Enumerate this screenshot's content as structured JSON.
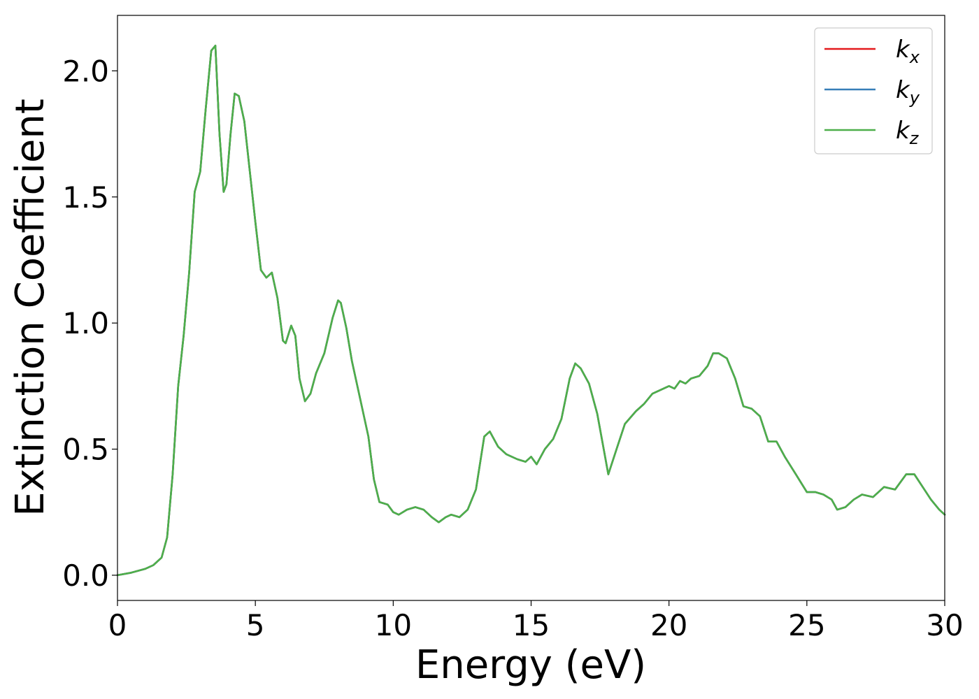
{
  "chart_data": {
    "type": "line",
    "xlabel": "Energy (eV)",
    "ylabel": "Extinction Coefficient",
    "xlim": [
      0,
      30
    ],
    "ylim": [
      -0.1,
      2.22
    ],
    "xticks": [
      0,
      5,
      10,
      15,
      20,
      25,
      30
    ],
    "xtick_labels": [
      "0",
      "5",
      "10",
      "15",
      "20",
      "25",
      "30"
    ],
    "yticks": [
      0.0,
      0.5,
      1.0,
      1.5,
      2.0
    ],
    "ytick_labels": [
      "0.0",
      "0.5",
      "1.0",
      "1.5",
      "2.0"
    ],
    "grid": false,
    "legend_position": "top-right",
    "x": [
      0,
      0.5,
      1.0,
      1.3,
      1.6,
      1.8,
      2.0,
      2.2,
      2.4,
      2.6,
      2.8,
      3.0,
      3.2,
      3.4,
      3.55,
      3.7,
      3.85,
      3.95,
      4.1,
      4.25,
      4.4,
      4.6,
      4.8,
      5.0,
      5.2,
      5.4,
      5.6,
      5.8,
      6.0,
      6.1,
      6.3,
      6.45,
      6.6,
      6.8,
      7.0,
      7.2,
      7.5,
      7.8,
      8.0,
      8.1,
      8.3,
      8.5,
      8.8,
      9.1,
      9.3,
      9.5,
      9.8,
      10.0,
      10.2,
      10.5,
      10.8,
      11.1,
      11.4,
      11.65,
      11.9,
      12.1,
      12.4,
      12.7,
      13.0,
      13.3,
      13.5,
      13.8,
      14.1,
      14.5,
      14.8,
      15.0,
      15.2,
      15.5,
      15.8,
      16.1,
      16.4,
      16.6,
      16.8,
      17.1,
      17.4,
      17.8,
      18.1,
      18.4,
      18.8,
      19.1,
      19.4,
      19.6,
      19.8,
      20.0,
      20.2,
      20.4,
      20.6,
      20.8,
      21.1,
      21.4,
      21.6,
      21.8,
      22.1,
      22.4,
      22.7,
      23.0,
      23.3,
      23.6,
      23.9,
      24.2,
      24.6,
      25.0,
      25.3,
      25.6,
      25.9,
      26.1,
      26.4,
      26.7,
      27.0,
      27.4,
      27.8,
      28.2,
      28.6,
      28.9,
      29.2,
      29.5,
      29.8,
      30.0
    ],
    "series": [
      {
        "name": "k_x",
        "color": "#e41a1c",
        "values": [
          0.0,
          0.01,
          0.025,
          0.04,
          0.07,
          0.15,
          0.4,
          0.75,
          0.95,
          1.2,
          1.52,
          1.6,
          1.85,
          2.08,
          2.1,
          1.75,
          1.52,
          1.55,
          1.75,
          1.91,
          1.9,
          1.8,
          1.6,
          1.4,
          1.21,
          1.18,
          1.2,
          1.1,
          0.93,
          0.92,
          0.99,
          0.95,
          0.78,
          0.69,
          0.72,
          0.8,
          0.88,
          1.02,
          1.09,
          1.08,
          0.98,
          0.85,
          0.7,
          0.55,
          0.38,
          0.29,
          0.28,
          0.25,
          0.24,
          0.26,
          0.27,
          0.26,
          0.23,
          0.21,
          0.23,
          0.24,
          0.23,
          0.26,
          0.34,
          0.55,
          0.57,
          0.51,
          0.48,
          0.46,
          0.45,
          0.47,
          0.44,
          0.5,
          0.54,
          0.62,
          0.78,
          0.84,
          0.82,
          0.76,
          0.64,
          0.4,
          0.5,
          0.6,
          0.65,
          0.68,
          0.72,
          0.73,
          0.74,
          0.75,
          0.74,
          0.77,
          0.76,
          0.78,
          0.79,
          0.83,
          0.88,
          0.88,
          0.86,
          0.78,
          0.67,
          0.66,
          0.63,
          0.53,
          0.53,
          0.47,
          0.4,
          0.33,
          0.33,
          0.32,
          0.3,
          0.26,
          0.27,
          0.3,
          0.32,
          0.31,
          0.35,
          0.34,
          0.4,
          0.4,
          0.35,
          0.3,
          0.26,
          0.24
        ]
      },
      {
        "name": "k_y",
        "color": "#377eb8",
        "values": [
          0.0,
          0.01,
          0.025,
          0.04,
          0.07,
          0.15,
          0.4,
          0.75,
          0.95,
          1.2,
          1.52,
          1.6,
          1.85,
          2.08,
          2.1,
          1.75,
          1.52,
          1.55,
          1.75,
          1.91,
          1.9,
          1.8,
          1.6,
          1.4,
          1.21,
          1.18,
          1.2,
          1.1,
          0.93,
          0.92,
          0.99,
          0.95,
          0.78,
          0.69,
          0.72,
          0.8,
          0.88,
          1.02,
          1.09,
          1.08,
          0.98,
          0.85,
          0.7,
          0.55,
          0.38,
          0.29,
          0.28,
          0.25,
          0.24,
          0.26,
          0.27,
          0.26,
          0.23,
          0.21,
          0.23,
          0.24,
          0.23,
          0.26,
          0.34,
          0.55,
          0.57,
          0.51,
          0.48,
          0.46,
          0.45,
          0.47,
          0.44,
          0.5,
          0.54,
          0.62,
          0.78,
          0.84,
          0.82,
          0.76,
          0.64,
          0.4,
          0.5,
          0.6,
          0.65,
          0.68,
          0.72,
          0.73,
          0.74,
          0.75,
          0.74,
          0.77,
          0.76,
          0.78,
          0.79,
          0.83,
          0.88,
          0.88,
          0.86,
          0.78,
          0.67,
          0.66,
          0.63,
          0.53,
          0.53,
          0.47,
          0.4,
          0.33,
          0.33,
          0.32,
          0.3,
          0.26,
          0.27,
          0.3,
          0.32,
          0.31,
          0.35,
          0.34,
          0.4,
          0.4,
          0.35,
          0.3,
          0.26,
          0.24
        ]
      },
      {
        "name": "k_z",
        "color": "#4daf4a",
        "values": [
          0.0,
          0.01,
          0.025,
          0.04,
          0.07,
          0.15,
          0.4,
          0.75,
          0.95,
          1.2,
          1.52,
          1.6,
          1.85,
          2.08,
          2.1,
          1.75,
          1.52,
          1.55,
          1.75,
          1.91,
          1.9,
          1.8,
          1.6,
          1.4,
          1.21,
          1.18,
          1.2,
          1.1,
          0.93,
          0.92,
          0.99,
          0.95,
          0.78,
          0.69,
          0.72,
          0.8,
          0.88,
          1.02,
          1.09,
          1.08,
          0.98,
          0.85,
          0.7,
          0.55,
          0.38,
          0.29,
          0.28,
          0.25,
          0.24,
          0.26,
          0.27,
          0.26,
          0.23,
          0.21,
          0.23,
          0.24,
          0.23,
          0.26,
          0.34,
          0.55,
          0.57,
          0.51,
          0.48,
          0.46,
          0.45,
          0.47,
          0.44,
          0.5,
          0.54,
          0.62,
          0.78,
          0.84,
          0.82,
          0.76,
          0.64,
          0.4,
          0.5,
          0.6,
          0.65,
          0.68,
          0.72,
          0.73,
          0.74,
          0.75,
          0.74,
          0.77,
          0.76,
          0.78,
          0.79,
          0.83,
          0.88,
          0.88,
          0.86,
          0.78,
          0.67,
          0.66,
          0.63,
          0.53,
          0.53,
          0.47,
          0.4,
          0.33,
          0.33,
          0.32,
          0.3,
          0.26,
          0.27,
          0.3,
          0.32,
          0.31,
          0.35,
          0.34,
          0.4,
          0.4,
          0.35,
          0.3,
          0.26,
          0.24
        ]
      }
    ],
    "legend": [
      {
        "base": "k",
        "sub": "x",
        "color": "#e41a1c"
      },
      {
        "base": "k",
        "sub": "y",
        "color": "#377eb8"
      },
      {
        "base": "k",
        "sub": "z",
        "color": "#4daf4a"
      }
    ]
  }
}
